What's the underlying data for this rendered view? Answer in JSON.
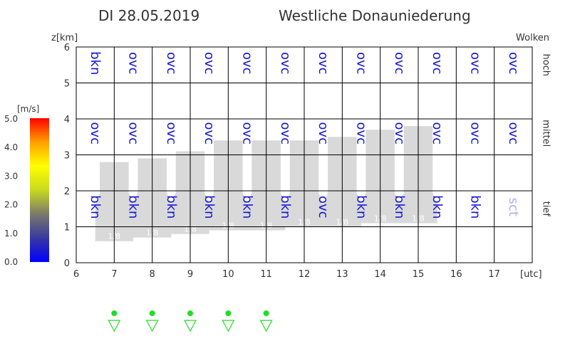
{
  "header": {
    "date": "DI 28.05.2019",
    "region": "Westliche Donauniederung"
  },
  "colors": {
    "cloud_text": "#1515d8",
    "cloud_text_faint": "#aab0ee",
    "cloud_band": "#d9d9d9",
    "grid": "#000000",
    "rain_green": "#22dd22"
  },
  "chart_data": {
    "type": "cloud-profile",
    "ylabel": "z[km]",
    "xlabel": "[utc]",
    "right_label": "Wolken",
    "xlim": [
      6,
      18
    ],
    "ylim": [
      0,
      6
    ],
    "x_ticks": [
      "6",
      "7",
      "8",
      "9",
      "10",
      "11",
      "12",
      "13",
      "14",
      "15",
      "16",
      "17"
    ],
    "y_ticks": [
      "0",
      "1",
      "2",
      "3",
      "4",
      "5",
      "6"
    ],
    "levels": [
      {
        "name": "hoch",
        "z": 5.5
      },
      {
        "name": "mittel",
        "z": 3.6
      },
      {
        "name": "tief",
        "z": 1.5
      }
    ],
    "hours": [
      6,
      7,
      8,
      9,
      10,
      11,
      12,
      13,
      14,
      15,
      16,
      17
    ],
    "cloud_high": [
      "bkn",
      "ovc",
      "ovc",
      "ovc",
      "ovc",
      "ovc",
      "ovc",
      "ovc",
      "ovc",
      "ovc",
      "ovc",
      "ovc"
    ],
    "cloud_mid": [
      "ovc",
      "ovc",
      "ovc",
      "ovc",
      "ovc",
      "ovc",
      "ovc",
      "ovc",
      "ovc",
      "ovc",
      "ovc",
      "ovc"
    ],
    "cloud_low": [
      "bkn",
      "bkn",
      "bkn",
      "bkn",
      "bkn",
      "bkn",
      "ovc",
      "bkn",
      "bkn",
      "bkn",
      "bkn",
      "sct"
    ],
    "convective": [
      {
        "hour": 7,
        "base": 0.6,
        "top": 2.8,
        "label": "1/8"
      },
      {
        "hour": 8,
        "base": 0.7,
        "top": 2.9,
        "label": "1/8"
      },
      {
        "hour": 9,
        "base": 0.8,
        "top": 3.1,
        "label": "1/8"
      },
      {
        "hour": 10,
        "base": 0.9,
        "top": 3.4,
        "label": "1/8"
      },
      {
        "hour": 11,
        "base": 0.9,
        "top": 3.4,
        "label": "1/8"
      },
      {
        "hour": 12,
        "base": 1.0,
        "top": 3.4,
        "label": "1/8"
      },
      {
        "hour": 13,
        "base": 1.0,
        "top": 3.5,
        "label": "1/8"
      },
      {
        "hour": 14,
        "base": 1.1,
        "top": 3.7,
        "label": "1/8"
      },
      {
        "hour": 15,
        "base": 1.1,
        "top": 3.8,
        "label": "1/8"
      }
    ],
    "precip_hours": [
      7,
      8,
      9,
      10,
      11
    ],
    "wind_scale": {
      "unit": "[m/s]",
      "ticks": [
        "0.0",
        "1.0",
        "2.0",
        "3.0",
        "4.0",
        "5.0"
      ],
      "colors": [
        "#0000ff",
        "#3838a0",
        "#7a7a6a",
        "#c8d820",
        "#ffff00",
        "#ffa000",
        "#ff0000"
      ]
    }
  }
}
